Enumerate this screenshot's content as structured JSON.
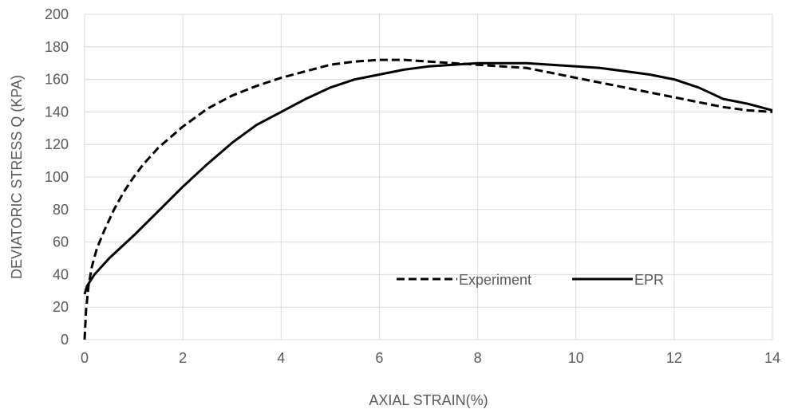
{
  "chart_data": {
    "type": "line",
    "title": "",
    "xlabel": "AXIAL STRAIN(%)",
    "ylabel": "DEVIATORIC STRESS Q (KPA)",
    "xlim": [
      0,
      14
    ],
    "ylim": [
      0,
      200
    ],
    "xticks": [
      0,
      2,
      4,
      6,
      8,
      10,
      12,
      14
    ],
    "yticks": [
      0,
      20,
      40,
      60,
      80,
      100,
      120,
      140,
      160,
      180,
      200
    ],
    "grid": true,
    "legend_position": "lower-right inside plot",
    "series": [
      {
        "name": "Experiment",
        "style": "dashed",
        "color": "#000000",
        "x": [
          0,
          0.03,
          0.08,
          0.15,
          0.25,
          0.4,
          0.6,
          0.8,
          1.0,
          1.2,
          1.5,
          2.0,
          2.5,
          3.0,
          3.5,
          4.0,
          4.5,
          5.0,
          5.5,
          6.0,
          6.5,
          7.0,
          7.5,
          8.0,
          8.5,
          9.0,
          9.5,
          10.0,
          10.5,
          11.0,
          11.5,
          12.0,
          12.5,
          13.0,
          13.5,
          14.0
        ],
        "y": [
          0,
          18,
          33,
          45,
          56,
          67,
          80,
          91,
          100,
          108,
          118,
          131,
          142,
          150,
          156,
          161,
          165,
          169,
          171,
          172,
          172,
          171,
          170,
          169,
          168,
          167,
          164,
          161,
          158,
          155,
          152,
          149,
          146,
          143,
          141,
          140
        ]
      },
      {
        "name": "EPR",
        "style": "solid",
        "color": "#000000",
        "x": [
          0,
          0.05,
          0.2,
          0.5,
          1.0,
          1.5,
          2.0,
          2.5,
          3.0,
          3.5,
          4.0,
          4.5,
          5.0,
          5.5,
          6.0,
          6.5,
          7.0,
          7.5,
          8.0,
          8.5,
          9.0,
          9.5,
          10.0,
          10.5,
          11.0,
          11.5,
          12.0,
          12.5,
          13.0,
          13.5,
          14.0
        ],
        "y": [
          28,
          33,
          40,
          50,
          64,
          79,
          94,
          108,
          121,
          132,
          140,
          148,
          155,
          160,
          163,
          166,
          168,
          169,
          170,
          170,
          170,
          169,
          168,
          167,
          165,
          163,
          160,
          155,
          148,
          145,
          141
        ]
      }
    ]
  }
}
